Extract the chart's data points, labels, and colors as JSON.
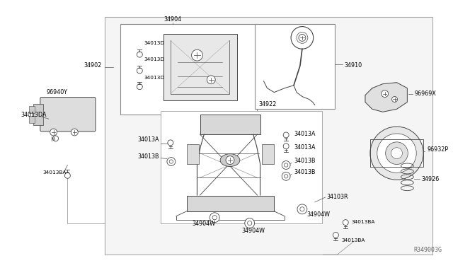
{
  "bg_color": "#ffffff",
  "line_color": "#333333",
  "fig_width": 6.4,
  "fig_height": 3.72,
  "dpi": 100,
  "watermark": "R349003G",
  "title_label": "34904",
  "label_34922": "34922",
  "label_34910": "34910",
  "label_34902": "34902",
  "label_96969X": "96969X",
  "label_96940Y": "96940Y",
  "label_96932P": "96932P",
  "label_34926": "34926",
  "label_34013DA": "34013DA",
  "label_34103R": "34103R"
}
